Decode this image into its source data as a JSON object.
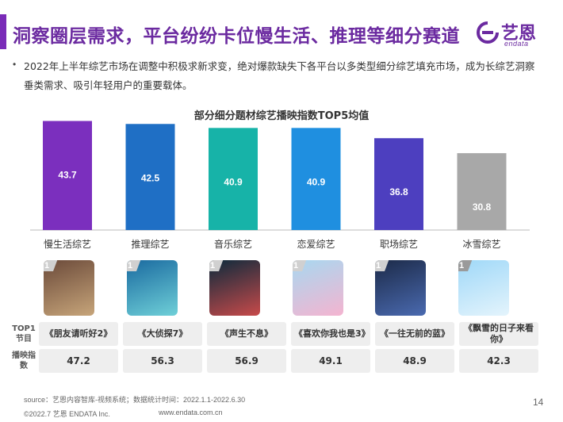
{
  "header": {
    "title": "洞察圈层需求，平台纷纷卡位慢生活、推理等细分赛道",
    "logo_cn": "艺恩",
    "logo_en": "endata",
    "accent_color": "#6b2aa0"
  },
  "summary": {
    "bullet": "•",
    "text": "2022年上半年综艺市场在调整中积极求新求变，绝对爆款缺失下各平台以多类型细分综艺填充市场，成为长综艺洞察垂类需求、吸引年轻用户的重要载体。"
  },
  "chart_data": {
    "type": "bar",
    "title": "部分细分题材综艺播映指数TOP5均值",
    "categories": [
      "慢生活综艺",
      "推理综艺",
      "音乐综艺",
      "恋爱综艺",
      "职场综艺",
      "冰雪综艺"
    ],
    "values": [
      43.7,
      42.5,
      40.9,
      40.9,
      36.8,
      30.8
    ],
    "colors": [
      "#7b2fbe",
      "#1f6fc5",
      "#17b3a8",
      "#1f8fe0",
      "#4d3fbf",
      "#a8a8a8"
    ],
    "ylim": [
      0,
      50
    ],
    "grid": false,
    "legend": "none"
  },
  "top1": {
    "rank_label": "1",
    "row_label_program": "TOP1节目",
    "row_label_index": "播映指数",
    "programs": [
      "《朋友请听好2》",
      "《大侦探7》",
      "《声生不息》",
      "《喜欢你我也是3》",
      "《一往无前的蓝》",
      "《飘雪的日子来看你》"
    ],
    "indices": [
      "47.2",
      "56.3",
      "56.9",
      "49.1",
      "48.9",
      "42.3"
    ],
    "poster_icons": [
      "friends-poster-icon",
      "detective-poster-icon",
      "music-poster-icon",
      "romance-poster-icon",
      "firefighter-poster-icon",
      "snow-poster-icon"
    ]
  },
  "footer": {
    "source": "source：艺恩内容智库-视频系统；数据统计时间：2022.1.1-2022.6.30",
    "copyright": "©2022.7 艺恩 ENDATA Inc.",
    "website": "www.endata.com.cn",
    "page": "14"
  }
}
